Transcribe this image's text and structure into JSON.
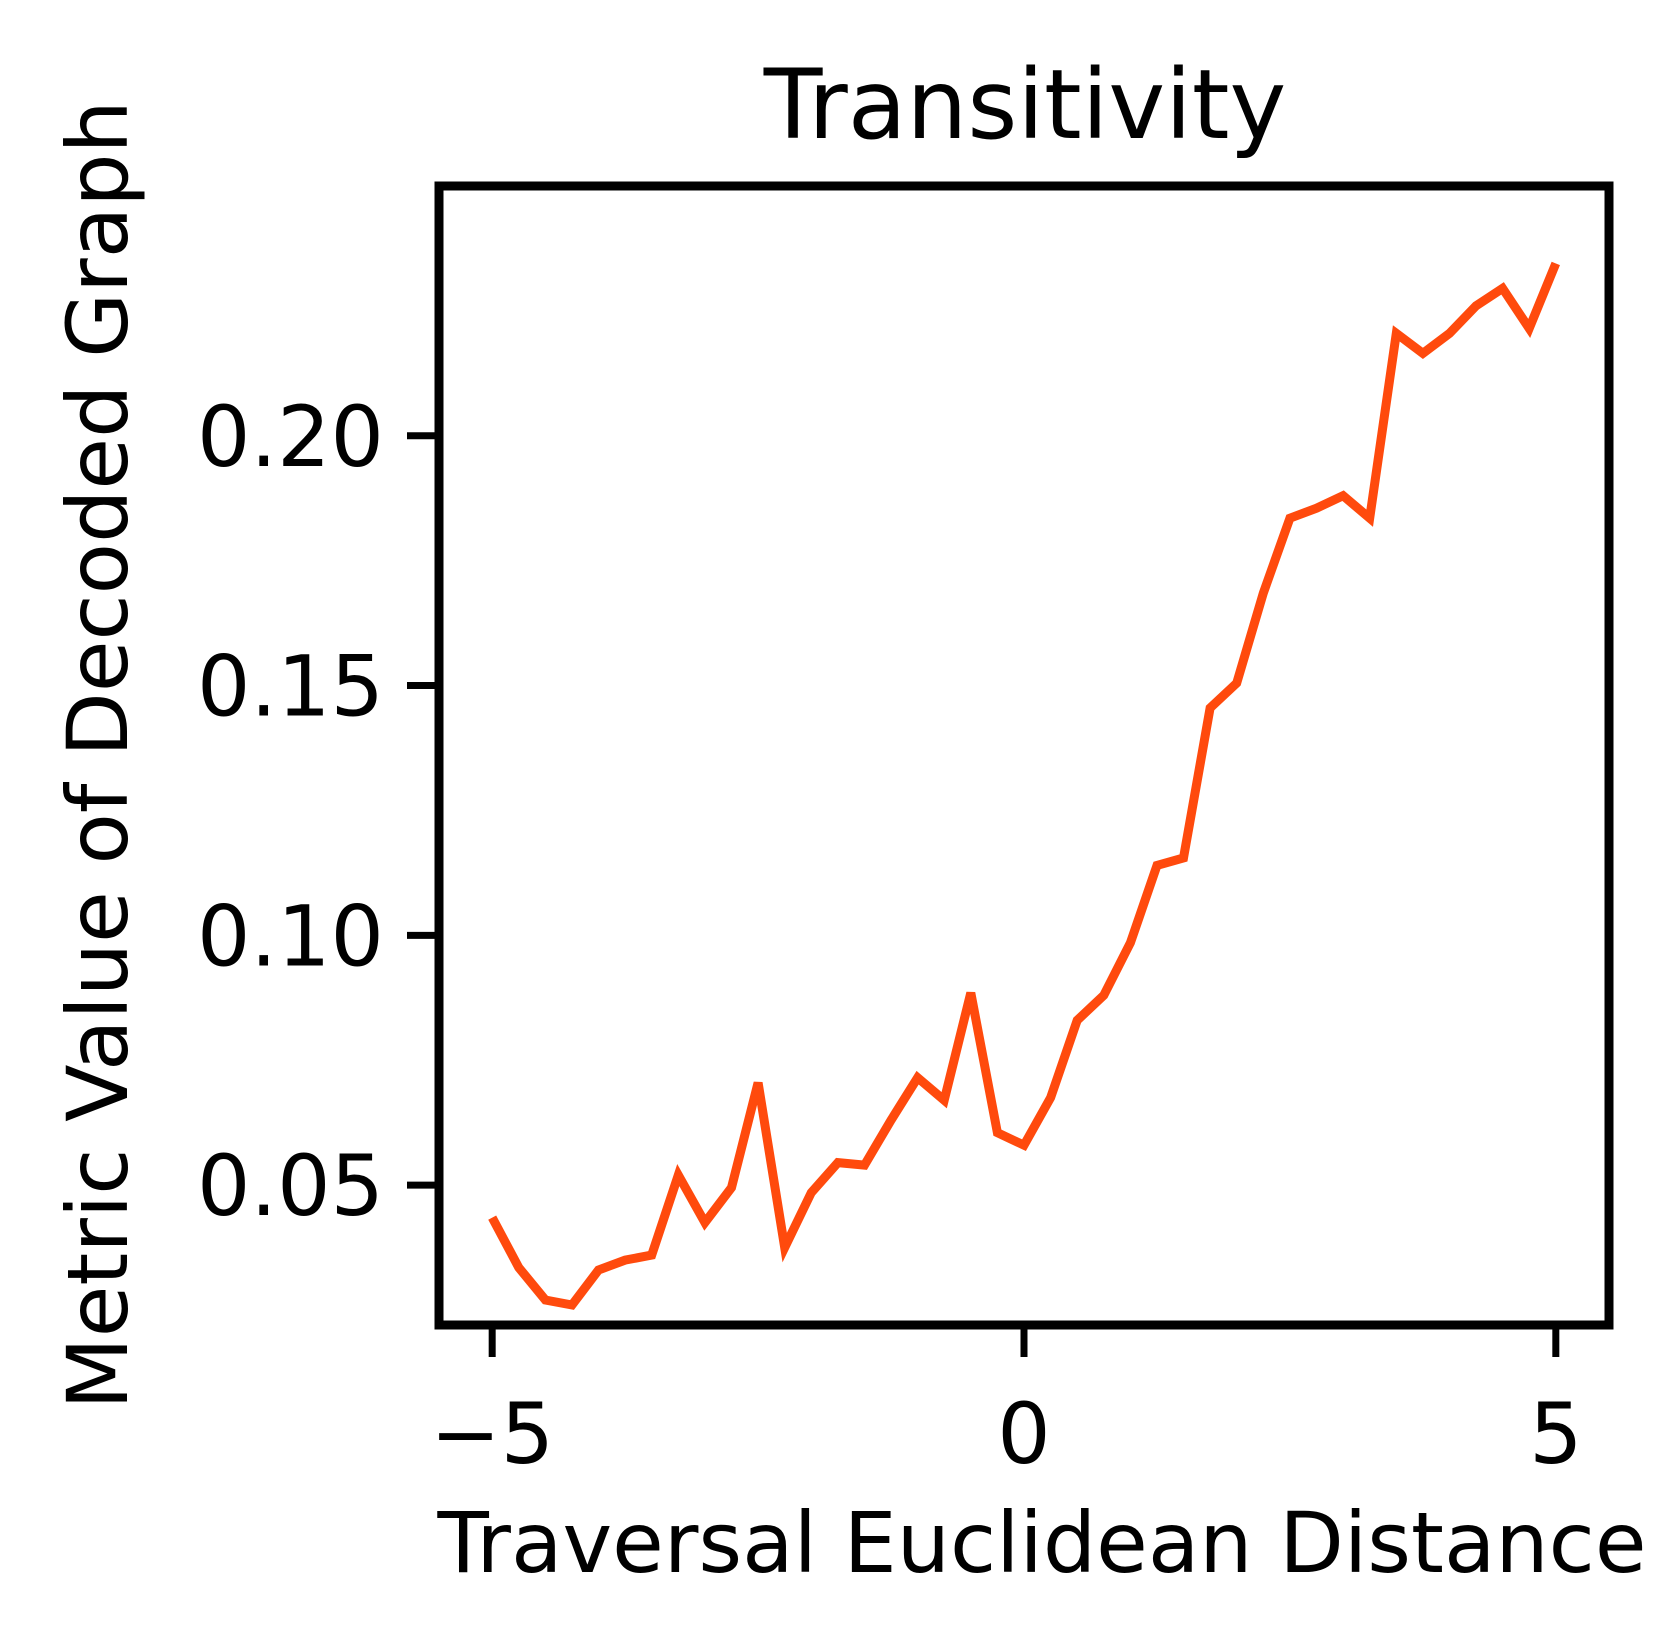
{
  "chart_data": {
    "type": "line",
    "title": "Transitivity",
    "xlabel": "Traversal Euclidean Distance",
    "ylabel": "Metric Value of Decoded Graph",
    "xlim": [
      -5.5,
      5.5
    ],
    "ylim": [
      0.022,
      0.25
    ],
    "xticks": [
      -5,
      0,
      5
    ],
    "xtick_labels": [
      "−5",
      "0",
      "5"
    ],
    "yticks": [
      0.05,
      0.1,
      0.15,
      0.2
    ],
    "ytick_labels": [
      "0.05",
      "0.10",
      "0.15",
      "0.20"
    ],
    "grid": false,
    "legend": "none",
    "line_color": "#ff4a0d",
    "series": [
      {
        "x": [
          -5.0,
          -4.75,
          -4.5,
          -4.25,
          -4.0,
          -3.75,
          -3.5,
          -3.25,
          -3.0,
          -2.75,
          -2.5,
          -2.25,
          -2.0,
          -1.75,
          -1.5,
          -1.25,
          -1.0,
          -0.75,
          -0.5,
          -0.25,
          0.0,
          0.25,
          0.5,
          0.75,
          1.0,
          1.25,
          1.5,
          1.75,
          2.0,
          2.25,
          2.5,
          2.75,
          3.0,
          3.25,
          3.5,
          3.75,
          4.0,
          4.25,
          4.5,
          4.75,
          5.0
        ],
        "values": [
          0.0435,
          0.0335,
          0.027,
          0.026,
          0.033,
          0.035,
          0.036,
          0.052,
          0.0425,
          0.0495,
          0.0705,
          0.0375,
          0.0485,
          0.0545,
          0.054,
          0.063,
          0.0715,
          0.067,
          0.0885,
          0.0605,
          0.058,
          0.0675,
          0.083,
          0.088,
          0.0985,
          0.114,
          0.1155,
          0.1455,
          0.1505,
          0.1685,
          0.1835,
          0.1855,
          0.188,
          0.1835,
          0.2205,
          0.2165,
          0.2205,
          0.226,
          0.2295,
          0.2215,
          0.2345
        ]
      }
    ]
  }
}
